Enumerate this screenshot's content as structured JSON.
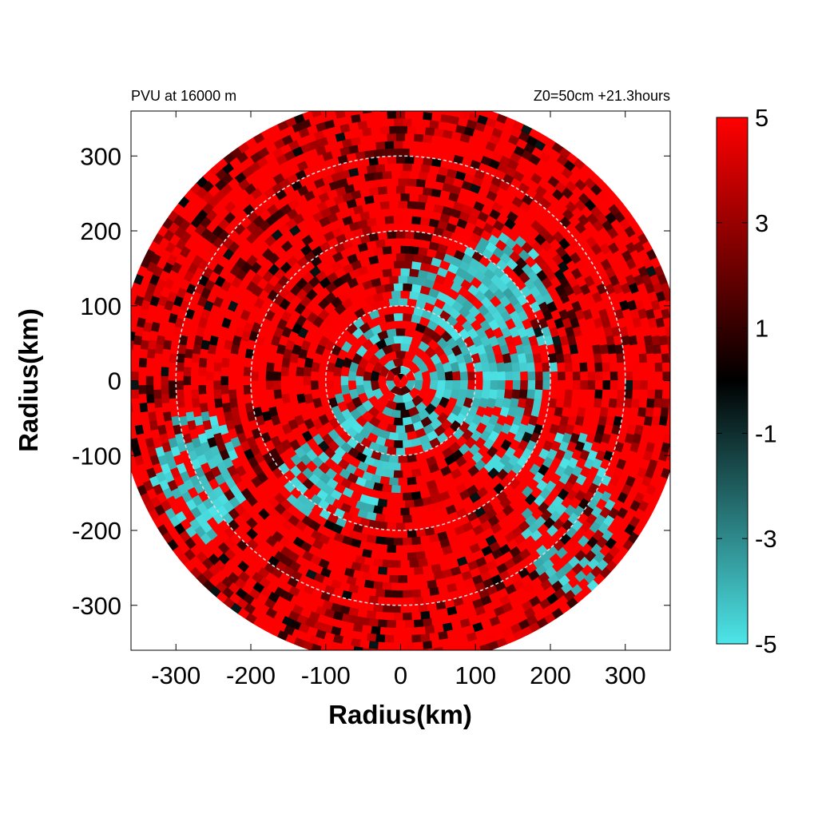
{
  "chart_data": {
    "type": "heatmap",
    "title_left": "PVU at 16000 m",
    "title_right": "Z0=50cm  +21.3hours",
    "xlabel": "Radius(km)",
    "ylabel": "Radius(km)",
    "xlim": [
      -360,
      360
    ],
    "ylim": [
      -360,
      360
    ],
    "x_ticks": [
      -300,
      -200,
      -100,
      0,
      100,
      200,
      300
    ],
    "y_ticks": [
      300,
      200,
      100,
      0,
      -100,
      -200,
      -300
    ],
    "reference_circles_km": [
      100,
      200,
      300
    ],
    "domain_radius_km": 380,
    "colorbar": {
      "min": -5,
      "max": 5,
      "ticks": [
        5,
        3,
        1,
        -1,
        -3,
        -5
      ],
      "colors": {
        "low": "#4de5e8",
        "mid": "#000000",
        "high": "#ff0000"
      }
    },
    "field_note": "mostly positive PVU (red) with negative cyan regions concentrated in the inner core and the eastern/south-western sectors"
  }
}
